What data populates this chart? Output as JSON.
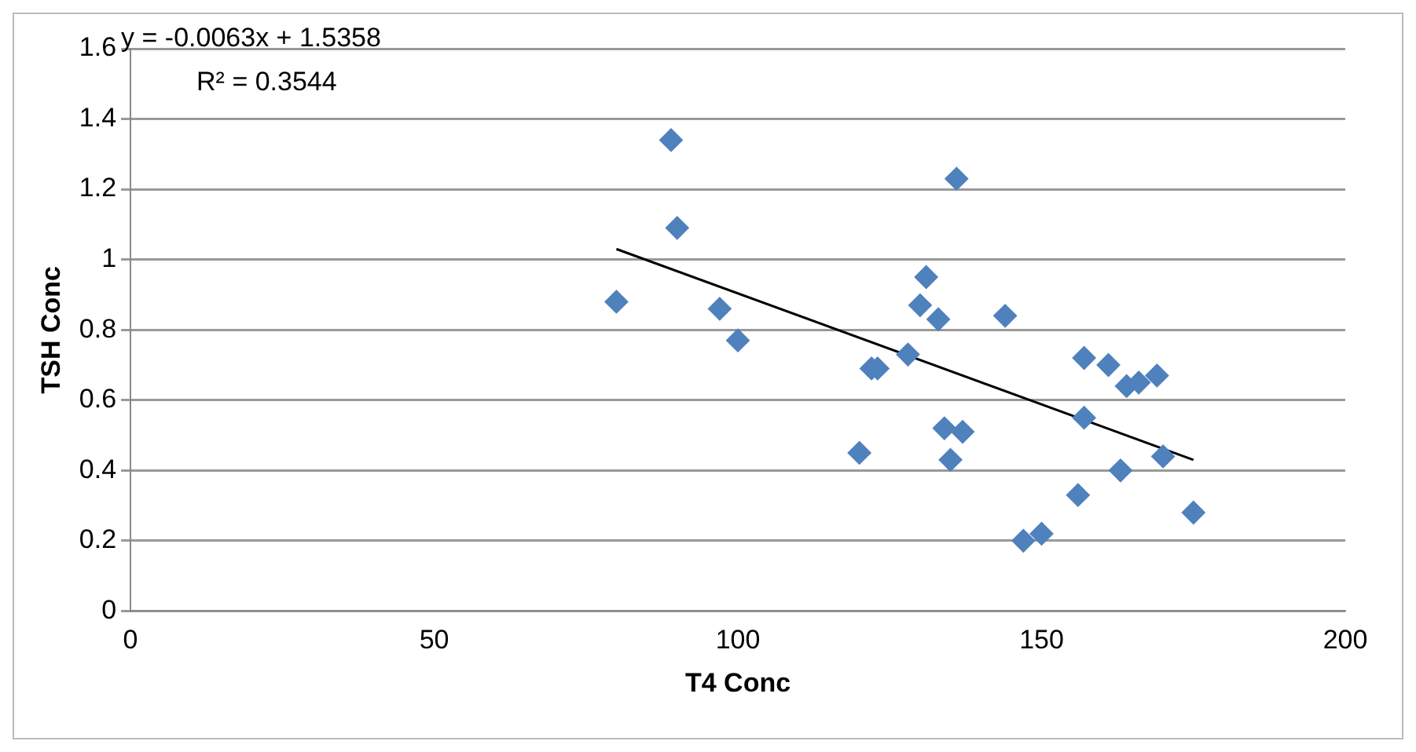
{
  "chart_data": {
    "type": "scatter",
    "xlabel": "T4 Conc",
    "ylabel": "TSH Conc",
    "xlim": [
      0,
      200
    ],
    "xticks": [
      0,
      50,
      100,
      150,
      200
    ],
    "ylim": [
      0,
      1.6
    ],
    "yticks": [
      0,
      0.2,
      0.4,
      0.6,
      0.8,
      1,
      1.2,
      1.4,
      1.6
    ],
    "grid": "y",
    "legend": false,
    "marker": "diamond",
    "annotations": [
      "y = -0.0063x + 1.5358",
      "R² = 0.3544"
    ],
    "series": [
      {
        "color": "#4f81bd",
        "x": [
          80,
          89,
          90,
          97,
          100,
          120,
          122,
          123,
          128,
          130,
          131,
          133,
          134,
          135,
          136,
          137,
          144,
          147,
          150,
          156,
          157,
          157,
          161,
          163,
          164,
          166,
          169,
          170,
          175
        ],
        "values": [
          0.88,
          1.34,
          1.09,
          0.86,
          0.77,
          0.45,
          0.69,
          0.69,
          0.73,
          0.87,
          0.95,
          0.83,
          0.52,
          0.43,
          1.23,
          0.51,
          0.84,
          0.2,
          0.22,
          0.33,
          0.72,
          0.55,
          0.7,
          0.4,
          0.64,
          0.65,
          0.67,
          0.44,
          0.28
        ]
      },
      {
        "type": "line",
        "color": "#000000",
        "marker": "none",
        "x": [
          80,
          175
        ],
        "values": [
          1.03,
          0.43
        ]
      }
    ]
  }
}
